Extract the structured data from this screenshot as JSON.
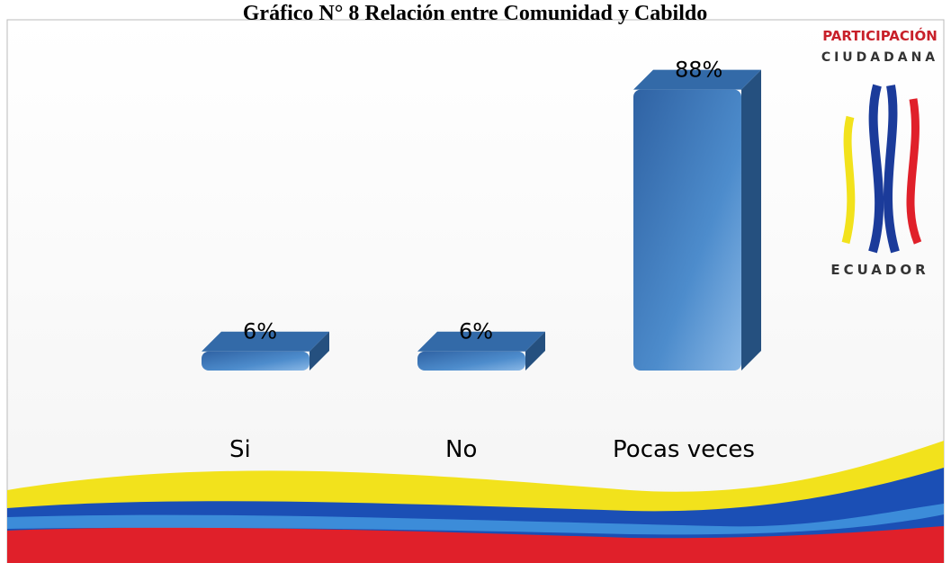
{
  "chart_data": {
    "type": "bar",
    "title": "Gráfico N° 8 Relación entre Comunidad y Cabildo",
    "categories": [
      "Si",
      "No",
      "Pocas veces"
    ],
    "values": [
      6,
      6,
      88
    ],
    "value_labels": [
      "6%",
      "6%",
      "88%"
    ],
    "color": "#3f78b8",
    "ylim": [
      0,
      100
    ]
  },
  "logo": {
    "line1": "PARTICIPACIÓN",
    "line2": "CIUDADANA",
    "line3": "ECUADOR"
  }
}
